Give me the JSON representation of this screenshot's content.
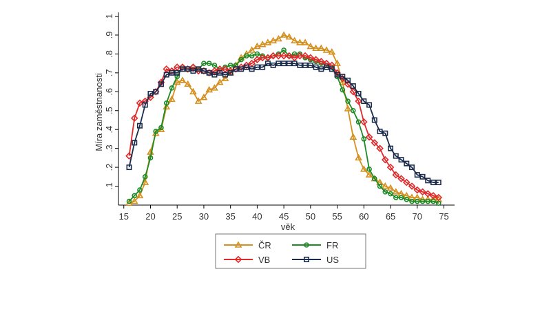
{
  "chart_data": {
    "type": "line",
    "title": "",
    "xlabel": "věk",
    "ylabel": "Míra zaměstnanosti",
    "xlim": [
      14,
      77
    ],
    "ylim": [
      0,
      1.02
    ],
    "xticks": [
      15,
      20,
      25,
      30,
      35,
      40,
      45,
      50,
      55,
      60,
      65,
      70,
      75
    ],
    "xtick_labels": [
      "15",
      "20",
      "25",
      "30",
      "35",
      "40",
      "45",
      "50",
      "55",
      "60",
      "65",
      "70",
      "75"
    ],
    "yticks": [
      0.1,
      0.2,
      0.3,
      0.4,
      0.5,
      0.6,
      0.7,
      0.8,
      0.9,
      1.0
    ],
    "ytick_labels": [
      ".1",
      ".2",
      ".3",
      ".4",
      ".5",
      ".6",
      ".7",
      ".8",
      ".9",
      "1"
    ],
    "grid": false,
    "legend_position": "bottom-center",
    "x": [
      16,
      17,
      18,
      19,
      20,
      21,
      22,
      23,
      24,
      25,
      26,
      27,
      28,
      29,
      30,
      31,
      32,
      33,
      34,
      35,
      36,
      37,
      38,
      39,
      40,
      41,
      42,
      43,
      44,
      45,
      46,
      47,
      48,
      49,
      50,
      51,
      52,
      53,
      54,
      55,
      56,
      57,
      58,
      59,
      60,
      61,
      62,
      63,
      64,
      65,
      66,
      67,
      68,
      69,
      70,
      71,
      72,
      73,
      74
    ],
    "series": [
      {
        "name": "ČR",
        "color": "#d4901f",
        "marker": "triangle",
        "values": [
          0.01,
          0.02,
          0.05,
          0.12,
          0.28,
          0.38,
          0.4,
          0.52,
          0.56,
          0.65,
          0.66,
          0.64,
          0.6,
          0.55,
          0.57,
          0.61,
          0.62,
          0.65,
          0.67,
          0.7,
          0.74,
          0.78,
          0.8,
          0.82,
          0.84,
          0.85,
          0.86,
          0.87,
          0.88,
          0.9,
          0.89,
          0.87,
          0.86,
          0.86,
          0.84,
          0.83,
          0.83,
          0.82,
          0.81,
          0.75,
          0.65,
          0.51,
          0.36,
          0.25,
          0.19,
          0.16,
          0.14,
          0.12,
          0.1,
          0.09,
          0.07,
          0.06,
          0.05,
          0.04,
          0.04,
          0.03,
          0.03,
          0.03,
          0.03
        ]
      },
      {
        "name": "FR",
        "color": "#1d8a25",
        "marker": "circle",
        "values": [
          0.02,
          0.05,
          0.08,
          0.15,
          0.25,
          0.39,
          0.41,
          0.54,
          0.62,
          0.68,
          0.73,
          0.72,
          0.73,
          0.72,
          0.75,
          0.75,
          0.74,
          0.72,
          0.73,
          0.74,
          0.74,
          0.77,
          0.79,
          0.79,
          0.8,
          0.79,
          0.78,
          0.79,
          0.8,
          0.82,
          0.79,
          0.8,
          0.8,
          0.78,
          0.77,
          0.76,
          0.75,
          0.74,
          0.73,
          0.68,
          0.61,
          0.55,
          0.5,
          0.44,
          0.35,
          0.19,
          0.14,
          0.1,
          0.07,
          0.06,
          0.04,
          0.04,
          0.03,
          0.02,
          0.02,
          0.02,
          0.02,
          0.02,
          0.01
        ]
      },
      {
        "name": "VB",
        "color": "#e02a2a",
        "marker": "diamond",
        "values": [
          0.26,
          0.46,
          0.54,
          0.55,
          0.57,
          0.6,
          0.65,
          0.72,
          0.71,
          0.73,
          0.73,
          0.72,
          0.73,
          0.71,
          0.71,
          0.7,
          0.71,
          0.72,
          0.72,
          0.71,
          0.72,
          0.73,
          0.74,
          0.75,
          0.77,
          0.78,
          0.78,
          0.79,
          0.79,
          0.79,
          0.79,
          0.78,
          0.79,
          0.79,
          0.78,
          0.77,
          0.76,
          0.75,
          0.74,
          0.7,
          0.67,
          0.64,
          0.6,
          0.55,
          0.44,
          0.36,
          0.33,
          0.3,
          0.24,
          0.2,
          0.16,
          0.14,
          0.12,
          0.1,
          0.08,
          0.07,
          0.06,
          0.05,
          0.04
        ]
      },
      {
        "name": "US",
        "color": "#1c2c4c",
        "marker": "square",
        "values": [
          0.2,
          0.33,
          0.42,
          0.53,
          0.59,
          0.6,
          0.64,
          0.69,
          0.7,
          0.7,
          0.72,
          0.72,
          0.71,
          0.72,
          0.71,
          0.7,
          0.69,
          0.7,
          0.69,
          0.7,
          0.72,
          0.72,
          0.73,
          0.72,
          0.73,
          0.73,
          0.75,
          0.74,
          0.75,
          0.75,
          0.75,
          0.75,
          0.74,
          0.74,
          0.74,
          0.73,
          0.72,
          0.73,
          0.72,
          0.69,
          0.68,
          0.66,
          0.63,
          0.59,
          0.55,
          0.53,
          0.45,
          0.39,
          0.38,
          0.3,
          0.26,
          0.24,
          0.22,
          0.2,
          0.16,
          0.15,
          0.13,
          0.12,
          0.12
        ]
      }
    ]
  }
}
